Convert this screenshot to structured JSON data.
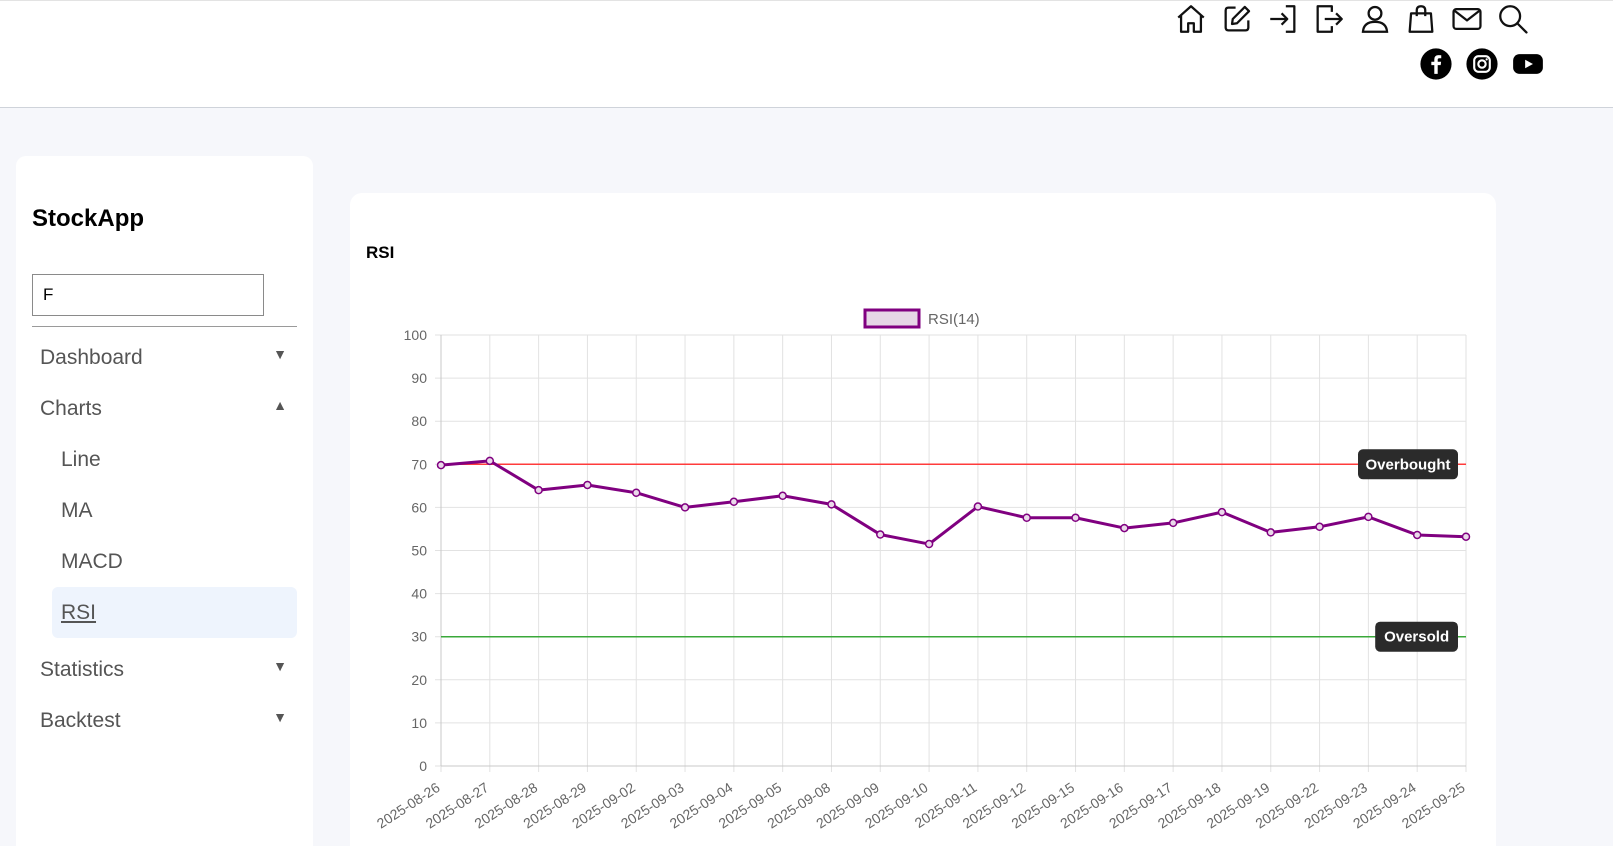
{
  "topbar": {
    "icons": [
      "home-icon",
      "edit-icon",
      "login-icon",
      "logout-icon",
      "user-icon",
      "shopping-bag-icon",
      "mail-icon",
      "search-icon"
    ],
    "social": [
      "facebook-icon",
      "instagram-icon",
      "youtube-icon"
    ]
  },
  "sidebar": {
    "brand": "StockApp",
    "search_value": "F",
    "items": [
      {
        "label": "Dashboard",
        "caret": "▼"
      },
      {
        "label": "Charts",
        "caret": "▲"
      },
      {
        "label": "Statistics",
        "caret": "▼"
      },
      {
        "label": "Backtest",
        "caret": "▼"
      }
    ],
    "chart_subitems": [
      "Line",
      "MA",
      "MACD",
      "RSI"
    ]
  },
  "main": {
    "card_title": "RSI"
  },
  "chart_data": {
    "type": "line",
    "legend": "RSI(14)",
    "legend_position": "top",
    "grid": true,
    "ylim": [
      0,
      100
    ],
    "yticks": [
      0,
      10,
      20,
      30,
      40,
      50,
      60,
      70,
      80,
      90,
      100
    ],
    "x": [
      "2025-08-26",
      "2025-08-27",
      "2025-08-28",
      "2025-08-29",
      "2025-09-02",
      "2025-09-03",
      "2025-09-04",
      "2025-09-05",
      "2025-09-08",
      "2025-09-09",
      "2025-09-10",
      "2025-09-11",
      "2025-09-12",
      "2025-09-15",
      "2025-09-16",
      "2025-09-17",
      "2025-09-18",
      "2025-09-19",
      "2025-09-22",
      "2025-09-23",
      "2025-09-24",
      "2025-09-25"
    ],
    "series": [
      {
        "name": "RSI(14)",
        "color": "#800080",
        "values": [
          69.8,
          70.8,
          64.0,
          65.2,
          63.4,
          60.0,
          61.3,
          62.7,
          60.7,
          53.7,
          51.5,
          60.2,
          57.6,
          57.6,
          55.2,
          56.4,
          58.9,
          54.2,
          55.5,
          57.8,
          53.6,
          53.2
        ]
      }
    ],
    "reference_lines": [
      {
        "label": "Overbought",
        "value": 70,
        "color": "#ff3b3b"
      },
      {
        "label": "Oversold",
        "value": 30,
        "color": "#3aa83a"
      }
    ]
  }
}
